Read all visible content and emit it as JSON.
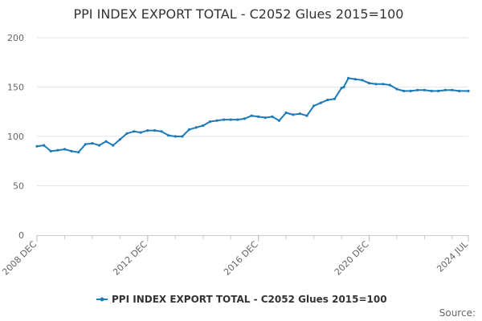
{
  "chart_data": {
    "type": "line",
    "title": "PPI INDEX EXPORT TOTAL - C2052 Glues 2015=100",
    "xlabel": "",
    "ylabel": "",
    "ylim": [
      0,
      200
    ],
    "yticks": [
      0,
      50,
      100,
      150,
      200
    ],
    "xlim": [
      "2008-12",
      "2024-07"
    ],
    "xticks": [
      {
        "date": "2008-12",
        "label": "2008 DEC"
      },
      {
        "date": "2012-12",
        "label": "2012 DEC"
      },
      {
        "date": "2016-12",
        "label": "2016 DEC"
      },
      {
        "date": "2020-12",
        "label": "2020 DEC"
      },
      {
        "date": "2024-07",
        "label": "2024 JUL"
      }
    ],
    "grid": "horizontal",
    "legend_position": "bottom",
    "colors": {
      "series": "#1f7ab8",
      "grid": "#e6e6e6",
      "axis": "#cccccc"
    },
    "series": [
      {
        "name": "PPI INDEX EXPORT TOTAL - C2052 Glues 2015=100",
        "x": [
          "2008-12",
          "2009-03",
          "2009-06",
          "2009-09",
          "2009-12",
          "2010-03",
          "2010-06",
          "2010-09",
          "2010-12",
          "2011-03",
          "2011-06",
          "2011-09",
          "2011-12",
          "2012-03",
          "2012-06",
          "2012-09",
          "2012-12",
          "2013-03",
          "2013-06",
          "2013-09",
          "2013-12",
          "2014-03",
          "2014-06",
          "2014-09",
          "2014-12",
          "2015-03",
          "2015-06",
          "2015-09",
          "2015-12",
          "2016-03",
          "2016-06",
          "2016-09",
          "2016-12",
          "2017-03",
          "2017-06",
          "2017-09",
          "2017-12",
          "2018-03",
          "2018-06",
          "2018-09",
          "2018-12",
          "2019-03",
          "2019-06",
          "2019-09",
          "2019-12",
          "2020-01",
          "2020-03",
          "2020-06",
          "2020-09",
          "2020-12",
          "2021-03",
          "2021-06",
          "2021-09",
          "2021-12",
          "2022-03",
          "2022-06",
          "2022-09",
          "2022-12",
          "2023-03",
          "2023-06",
          "2023-09",
          "2023-12",
          "2024-03",
          "2024-07"
        ],
        "values": [
          90,
          91,
          85,
          86,
          87,
          85,
          84,
          92,
          93,
          91,
          95,
          91,
          97,
          103,
          105,
          104,
          106,
          106,
          105,
          101,
          100,
          100,
          107,
          109,
          111,
          115,
          116,
          117,
          117,
          117,
          118,
          121,
          120,
          119,
          120,
          116,
          124,
          122,
          123,
          121,
          131,
          134,
          137,
          138,
          149,
          150,
          159,
          158,
          157,
          154,
          153,
          153,
          152,
          148,
          146,
          146,
          147,
          147,
          146,
          146,
          147,
          147,
          146,
          146
        ]
      }
    ],
    "legend": [
      "PPI INDEX EXPORT TOTAL - C2052 Glues 2015=100"
    ],
    "source_label": "Source:"
  }
}
